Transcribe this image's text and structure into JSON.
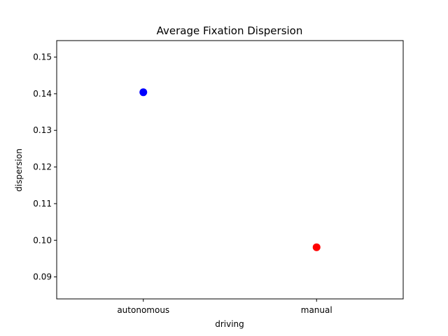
{
  "chart_data": {
    "type": "scatter",
    "title": "Average Fixation Dispersion",
    "xlabel": "driving",
    "ylabel": "dispersion",
    "categories": [
      "autonomous",
      "manual"
    ],
    "values": [
      0.1404,
      0.0981
    ],
    "point_colors": [
      "#0000ff",
      "#ff0000"
    ],
    "ylim": [
      0.084,
      0.1545
    ],
    "yticks": [
      0.09,
      0.1,
      0.11,
      0.12,
      0.13,
      0.14,
      0.15
    ],
    "ytick_labels": [
      "0.09",
      "0.10",
      "0.11",
      "0.12",
      "0.13",
      "0.14",
      "0.15"
    ],
    "grid": false,
    "legend": "none"
  }
}
